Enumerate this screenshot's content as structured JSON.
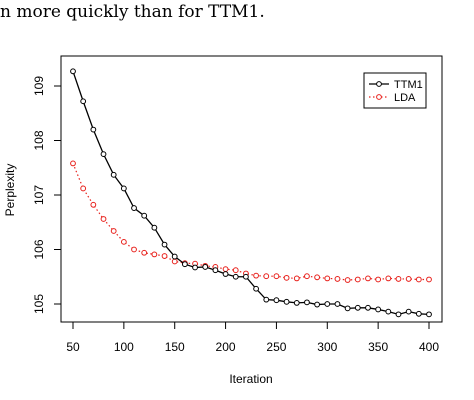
{
  "caption": {
    "text": "n more quickly than for TTM1."
  },
  "chart_data": {
    "type": "line",
    "xlabel": "Iteration",
    "ylabel": "Perplexity",
    "xlim": [
      50,
      400
    ],
    "ylim": [
      104.9,
      109.3
    ],
    "x_ticks": [
      50,
      100,
      150,
      200,
      250,
      300,
      350,
      400
    ],
    "y_ticks": [
      105,
      106,
      107,
      108,
      109
    ],
    "legend_position": "top-right",
    "series": [
      {
        "name": "TTM1",
        "color": "#000000",
        "line_style": "solid",
        "marker": "open-circle",
        "x": [
          50,
          60,
          70,
          80,
          90,
          100,
          110,
          120,
          130,
          140,
          150,
          160,
          170,
          180,
          190,
          200,
          210,
          220,
          230,
          240,
          250,
          260,
          270,
          280,
          290,
          300,
          310,
          320,
          330,
          340,
          350,
          360,
          370,
          380,
          390,
          400
        ],
        "values": [
          109.27,
          108.72,
          108.2,
          107.75,
          107.37,
          107.12,
          106.76,
          106.62,
          106.4,
          106.09,
          105.87,
          105.73,
          105.67,
          105.68,
          105.62,
          105.55,
          105.5,
          105.5,
          105.28,
          105.08,
          105.07,
          105.04,
          105.02,
          105.03,
          104.99,
          105.0,
          105.0,
          104.92,
          104.93,
          104.93,
          104.9,
          104.86,
          104.81,
          104.86,
          104.82,
          104.81
        ]
      },
      {
        "name": "LDA",
        "color": "#e8211c",
        "line_style": "dotted",
        "marker": "open-circle",
        "x": [
          50,
          60,
          70,
          80,
          90,
          100,
          110,
          120,
          130,
          140,
          150,
          160,
          170,
          180,
          190,
          200,
          210,
          220,
          230,
          240,
          250,
          260,
          270,
          280,
          290,
          300,
          310,
          320,
          330,
          340,
          350,
          360,
          370,
          380,
          390,
          400
        ],
        "values": [
          107.58,
          107.12,
          106.82,
          106.56,
          106.34,
          106.14,
          106.0,
          105.94,
          105.91,
          105.88,
          105.78,
          105.75,
          105.74,
          105.7,
          105.68,
          105.64,
          105.62,
          105.56,
          105.52,
          105.51,
          105.51,
          105.48,
          105.47,
          105.51,
          105.49,
          105.47,
          105.46,
          105.44,
          105.45,
          105.47,
          105.45,
          105.47,
          105.46,
          105.46,
          105.45,
          105.45
        ]
      }
    ]
  }
}
